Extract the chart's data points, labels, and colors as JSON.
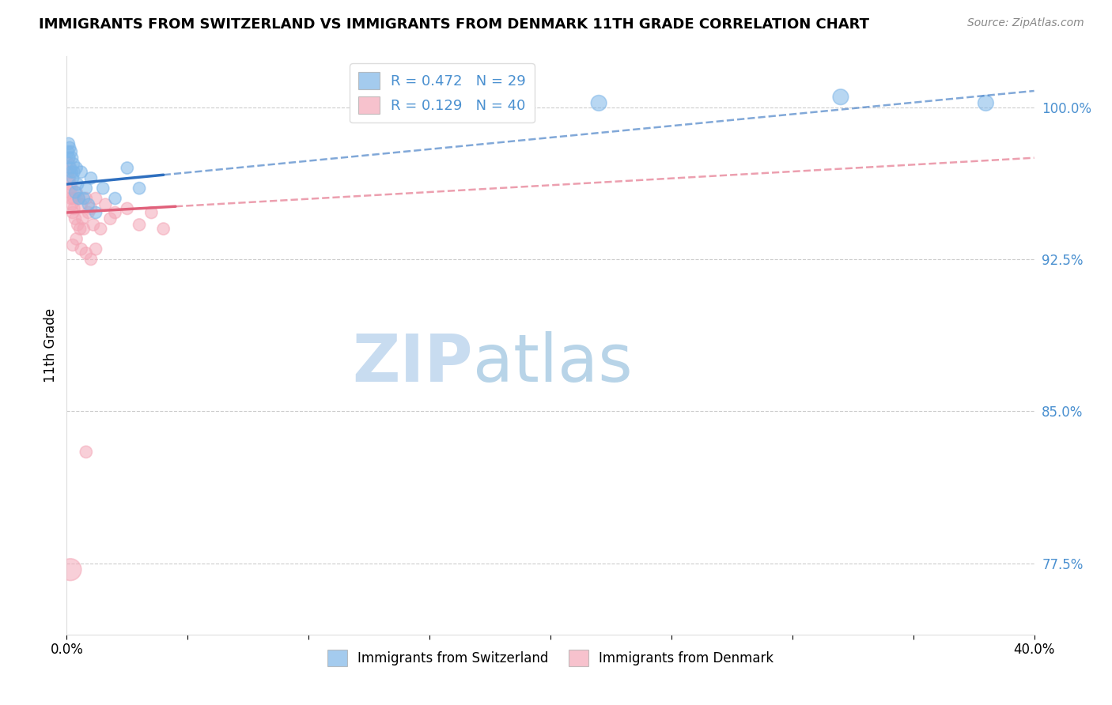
{
  "title": "IMMIGRANTS FROM SWITZERLAND VS IMMIGRANTS FROM DENMARK 11TH GRADE CORRELATION CHART",
  "source": "Source: ZipAtlas.com",
  "ylabel": "11th Grade",
  "xlim": [
    0.0,
    40.0
  ],
  "ylim": [
    74.0,
    102.5
  ],
  "yticks": [
    77.5,
    85.0,
    92.5,
    100.0
  ],
  "ytick_labels": [
    "77.5%",
    "85.0%",
    "92.5%",
    "100.0%"
  ],
  "r_switzerland": 0.472,
  "n_switzerland": 29,
  "r_denmark": 0.129,
  "n_denmark": 40,
  "color_switzerland": "#7EB6E8",
  "color_denmark": "#F4A8B8",
  "trendline_switzerland_color": "#2E6FBF",
  "trendline_denmark_color": "#E0607A",
  "background_color": "#FFFFFF",
  "watermark_zip_color": "#C8DCF0",
  "watermark_atlas_color": "#B8D4E8",
  "sw_x": [
    0.05,
    0.08,
    0.1,
    0.12,
    0.15,
    0.18,
    0.2,
    0.22,
    0.25,
    0.28,
    0.3,
    0.35,
    0.4,
    0.45,
    0.5,
    0.6,
    0.7,
    0.8,
    0.9,
    1.0,
    1.2,
    1.5,
    2.0,
    2.5,
    3.0,
    15.0,
    22.0,
    32.0,
    38.0
  ],
  "sw_y": [
    97.8,
    98.2,
    97.5,
    98.0,
    97.0,
    97.8,
    96.8,
    97.5,
    96.5,
    97.2,
    96.8,
    95.8,
    97.0,
    96.2,
    95.5,
    96.8,
    95.5,
    96.0,
    95.2,
    96.5,
    94.8,
    96.0,
    95.5,
    97.0,
    96.0,
    100.0,
    100.2,
    100.5,
    100.2
  ],
  "sw_sizes": [
    120,
    120,
    120,
    120,
    120,
    120,
    120,
    120,
    120,
    120,
    120,
    120,
    120,
    120,
    120,
    120,
    120,
    120,
    120,
    120,
    120,
    120,
    120,
    120,
    120,
    200,
    200,
    200,
    200
  ],
  "dk_x": [
    0.05,
    0.08,
    0.1,
    0.12,
    0.15,
    0.18,
    0.2,
    0.22,
    0.25,
    0.28,
    0.3,
    0.35,
    0.4,
    0.45,
    0.5,
    0.55,
    0.6,
    0.65,
    0.7,
    0.8,
    0.9,
    1.0,
    1.1,
    1.2,
    1.4,
    1.6,
    1.8,
    2.0,
    2.5,
    3.0,
    3.5,
    4.0,
    0.4,
    0.6,
    0.8,
    1.0,
    1.2,
    0.25,
    0.8,
    0.15
  ],
  "dk_y": [
    96.8,
    97.2,
    96.5,
    95.8,
    96.2,
    95.5,
    96.0,
    95.2,
    94.8,
    95.5,
    95.0,
    94.5,
    95.8,
    94.2,
    95.5,
    94.0,
    95.2,
    94.5,
    94.0,
    95.5,
    94.8,
    95.0,
    94.2,
    95.5,
    94.0,
    95.2,
    94.5,
    94.8,
    95.0,
    94.2,
    94.8,
    94.0,
    93.5,
    93.0,
    92.8,
    92.5,
    93.0,
    93.2,
    83.0,
    77.2
  ],
  "dk_sizes": [
    120,
    120,
    120,
    120,
    120,
    120,
    120,
    120,
    120,
    120,
    120,
    120,
    120,
    120,
    120,
    120,
    120,
    120,
    120,
    120,
    120,
    120,
    120,
    120,
    120,
    120,
    120,
    120,
    120,
    120,
    120,
    120,
    120,
    120,
    120,
    120,
    120,
    120,
    120,
    400
  ],
  "sw_trend_x0": 0.0,
  "sw_trend_x1": 40.0,
  "sw_trend_y0": 96.2,
  "sw_trend_y1": 100.8,
  "dk_trend_x0": 0.0,
  "dk_trend_x1": 40.0,
  "dk_trend_y0": 94.8,
  "dk_trend_y1": 97.5,
  "sw_solid_end": 4.0,
  "dk_solid_end": 4.5
}
